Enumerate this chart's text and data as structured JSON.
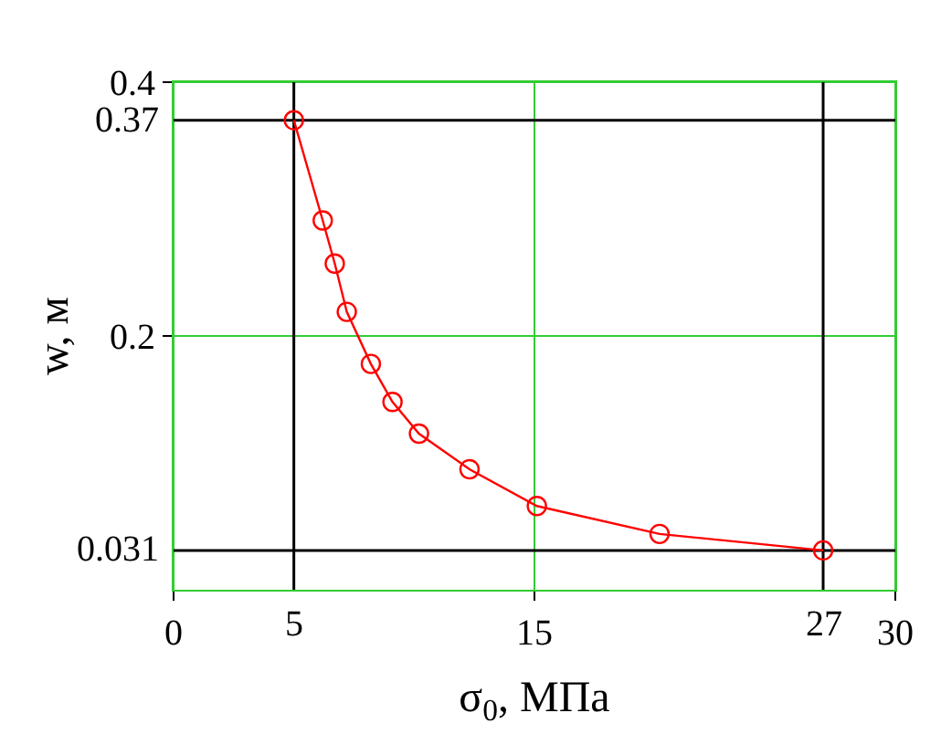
{
  "chart_data": {
    "type": "line",
    "xlabel": "σ$_{0}$, МПа",
    "ylabel": "w, м",
    "x": [
      5,
      6.2,
      6.7,
      7.2,
      8.2,
      9.1,
      10.2,
      12.3,
      15.1,
      20.2,
      27
    ],
    "series": [
      {
        "color": "#ff0000",
        "values": [
          0.37,
          0.291,
          0.257,
          0.219,
          0.178,
          0.148,
          0.123,
          0.095,
          0.066,
          0.044,
          0.031
        ]
      }
    ],
    "marker": "circle",
    "line_style": "solid",
    "grid": true,
    "xlim": [
      0,
      30
    ],
    "xticks": [
      0,
      15,
      30
    ],
    "ylim": [
      0,
      0.4
    ],
    "yticks": [
      0.2,
      0.4
    ],
    "ref_lines": [
      {
        "axis": "x",
        "value": 5,
        "label": "5",
        "color": "#000000"
      },
      {
        "axis": "x",
        "value": 27,
        "label": "27",
        "color": "#000000"
      },
      {
        "axis": "y",
        "value": 0.37,
        "label": "0.37",
        "color": "#000000"
      },
      {
        "axis": "y",
        "value": 0.031,
        "label": "0.031",
        "color": "#000000"
      }
    ]
  }
}
